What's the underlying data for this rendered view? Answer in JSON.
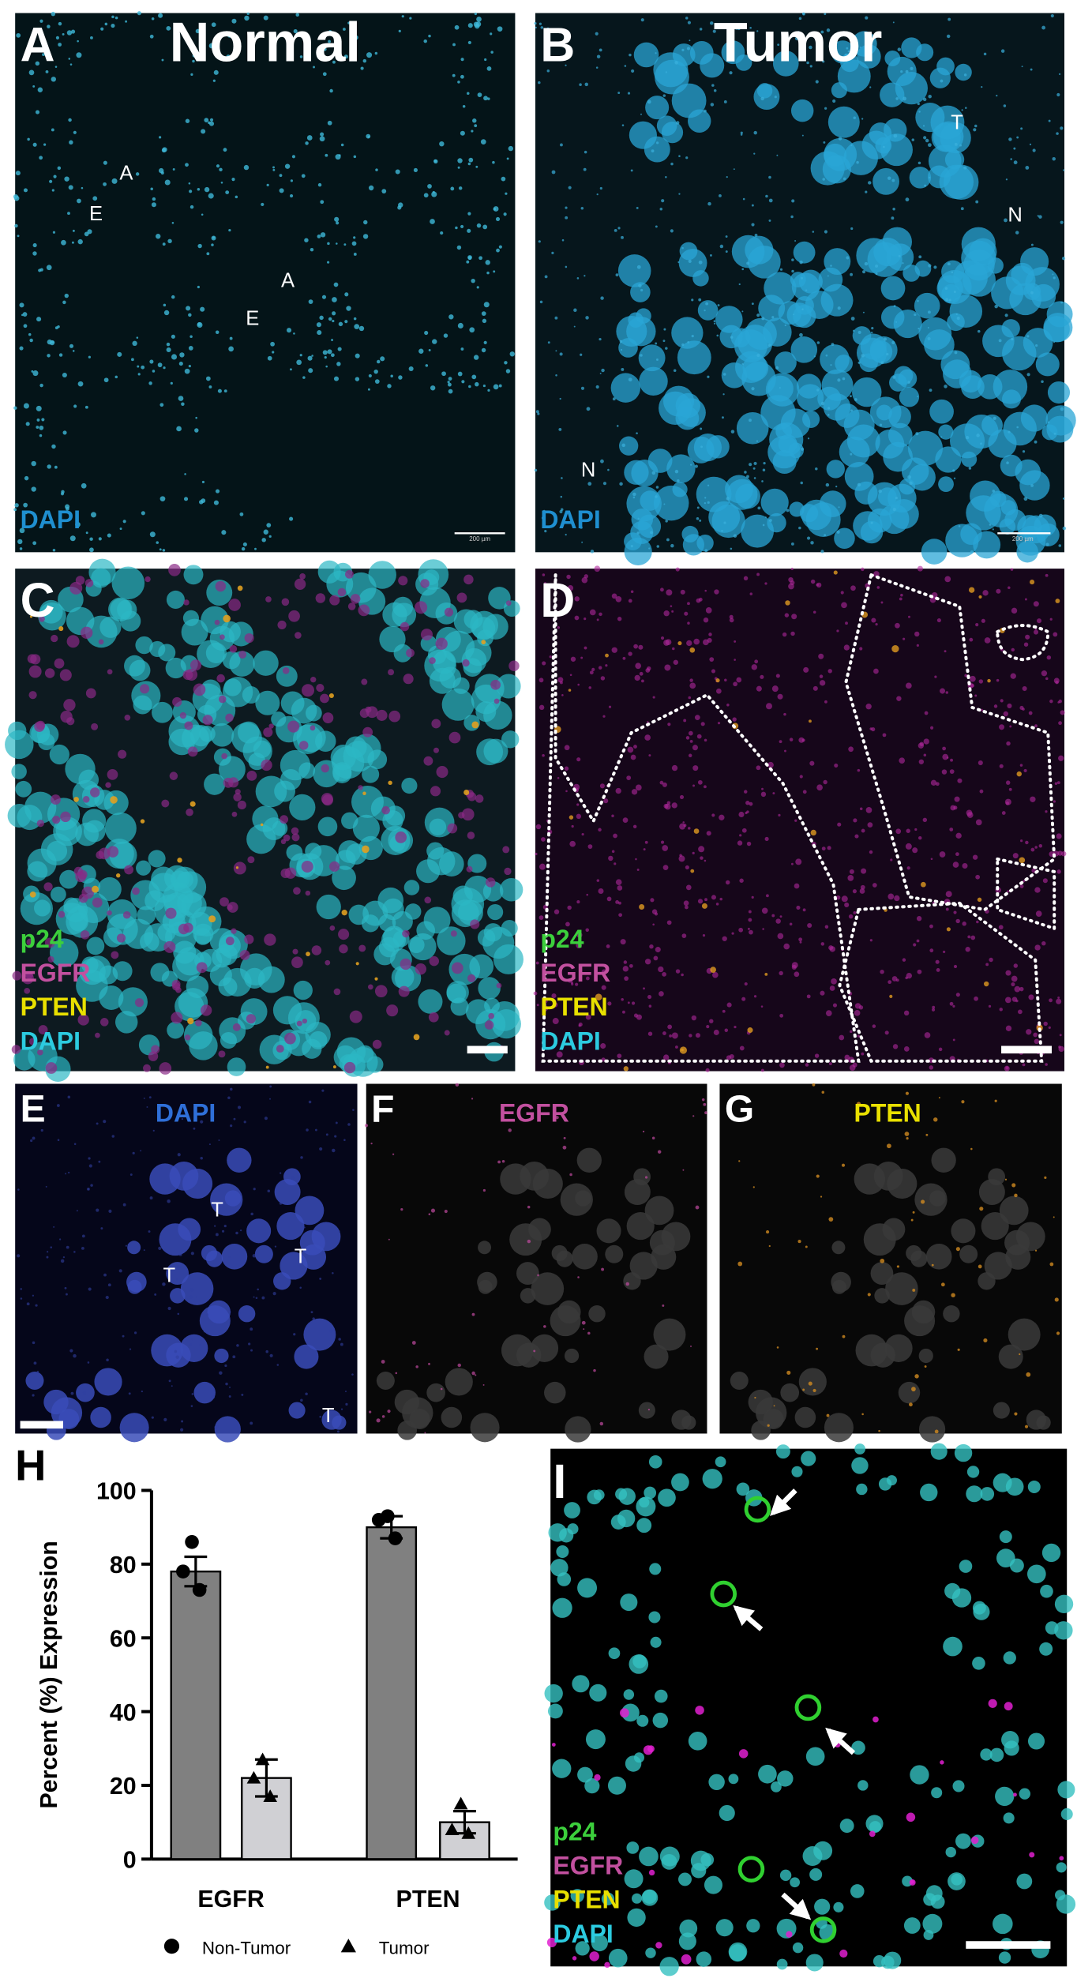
{
  "panels": [
    {
      "letter": "A",
      "title": "Normal",
      "channels": [
        {
          "name": "DAPI",
          "color": "#1f8fd0"
        }
      ],
      "annotations": [
        "A",
        "E",
        "A",
        "E"
      ],
      "scale_label": "200 µm"
    },
    {
      "letter": "B",
      "title": "Tumor",
      "channels": [
        {
          "name": "DAPI",
          "color": "#1f8fd0"
        }
      ],
      "annotations": [
        "T",
        "N",
        "N"
      ],
      "scale_label": "200 µm"
    },
    {
      "letter": "C",
      "channels": [
        {
          "name": "p24",
          "color": "#3ccf3c"
        },
        {
          "name": "EGFR",
          "color": "#c2509f"
        },
        {
          "name": "PTEN",
          "color": "#e9e000"
        },
        {
          "name": "DAPI",
          "color": "#2ccbe0"
        }
      ]
    },
    {
      "letter": "D",
      "channels": [
        {
          "name": "p24",
          "color": "#3ccf3c"
        },
        {
          "name": "EGFR",
          "color": "#c2509f"
        },
        {
          "name": "PTEN",
          "color": "#e9e000"
        },
        {
          "name": "DAPI",
          "color": "#2ccbe0"
        }
      ]
    },
    {
      "letter": "E",
      "title": "DAPI",
      "title_color": "#2f6fd8",
      "annotations": [
        "T",
        "T",
        "T",
        "T"
      ]
    },
    {
      "letter": "F",
      "title": "EGFR",
      "title_color": "#c2509f"
    },
    {
      "letter": "G",
      "title": "PTEN",
      "title_color": "#e9e000"
    },
    {
      "letter": "I",
      "channels": [
        {
          "name": "p24",
          "color": "#3ccf3c"
        },
        {
          "name": "EGFR",
          "color": "#c2509f"
        },
        {
          "name": "PTEN",
          "color": "#e9e000"
        },
        {
          "name": "DAPI",
          "color": "#2ccbe0"
        }
      ]
    }
  ],
  "chart_data": {
    "type": "bar",
    "panel_letter": "H",
    "ylabel": "Percent (%) Expression",
    "categories": [
      "EGFR",
      "PTEN"
    ],
    "series": [
      {
        "name": "Non-Tumor",
        "color": "#808080",
        "marker": "circle",
        "values": [
          78,
          90
        ],
        "errors": [
          4,
          3
        ],
        "points": [
          [
            86,
            78,
            73
          ],
          [
            93,
            92,
            87
          ]
        ]
      },
      {
        "name": "Tumor",
        "color": "#d0d0d4",
        "marker": "triangle",
        "values": [
          22,
          10
        ],
        "errors": [
          5,
          3
        ],
        "points": [
          [
            27,
            22,
            17
          ],
          [
            15,
            8,
            7
          ]
        ]
      }
    ],
    "ylim": [
      0,
      100
    ],
    "yticks": [
      0,
      20,
      40,
      60,
      80,
      100
    ],
    "legend": "bottom"
  }
}
